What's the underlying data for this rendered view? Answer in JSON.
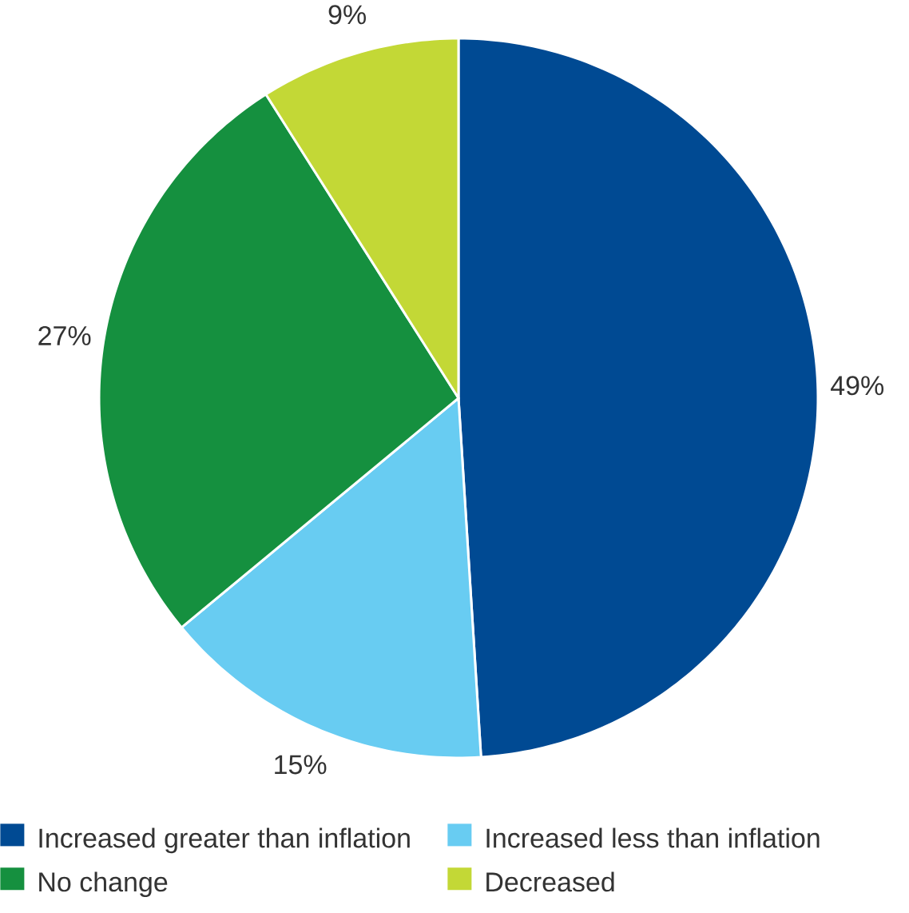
{
  "chart_data": {
    "type": "pie",
    "categories": [
      "Increased greater than inflation",
      "Increased less than inflation",
      "No change",
      "Decreased"
    ],
    "values": [
      49,
      15,
      27,
      9
    ],
    "colors": [
      "#004a93",
      "#68ccf2",
      "#15903f",
      "#c3d836"
    ],
    "value_labels": [
      "49%",
      "15%",
      "27%",
      "9%"
    ],
    "legend": "bottom"
  }
}
